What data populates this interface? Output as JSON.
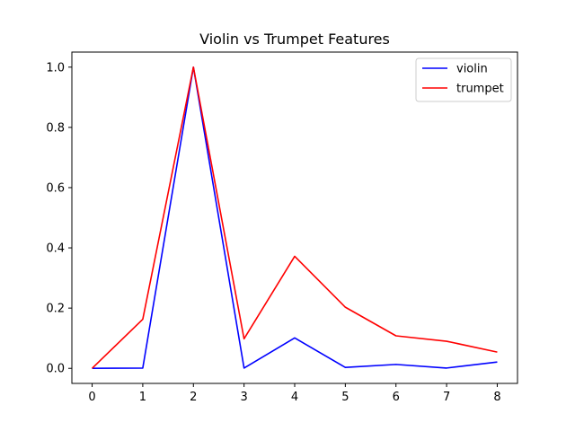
{
  "chart_data": {
    "type": "line",
    "title": "Violin vs Trumpet Features",
    "xlabel": "",
    "ylabel": "",
    "x": [
      0,
      1,
      2,
      3,
      4,
      5,
      6,
      7,
      8
    ],
    "xlim": [
      -0.4,
      8.4
    ],
    "ylim": [
      -0.05,
      1.05
    ],
    "xticks": [
      "0",
      "1",
      "2",
      "3",
      "4",
      "5",
      "6",
      "7",
      "8"
    ],
    "yticks": [
      "0.0",
      "0.2",
      "0.4",
      "0.6",
      "0.8",
      "1.0"
    ],
    "grid": false,
    "legend_position": "top-right",
    "series": [
      {
        "name": "violin",
        "color": "#0000ff",
        "values": [
          0.0,
          0.001,
          1.0,
          0.001,
          0.101,
          0.003,
          0.013,
          0.001,
          0.021
        ]
      },
      {
        "name": "trumpet",
        "color": "#ff0000",
        "values": [
          0.0,
          0.163,
          1.0,
          0.098,
          0.372,
          0.203,
          0.108,
          0.09,
          0.054
        ]
      }
    ]
  }
}
